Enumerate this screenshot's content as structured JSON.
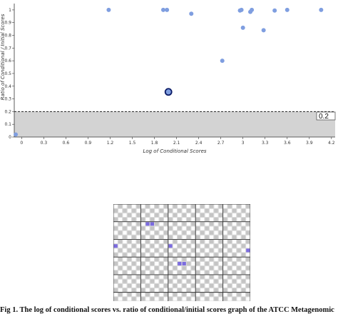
{
  "chart_data": {
    "type": "scatter",
    "title": "",
    "xlabel": "Log of Conditional Scores",
    "ylabel": "Ratio of Conditional / Initial Scores",
    "xlim": [
      -0.1,
      4.25
    ],
    "ylim": [
      0,
      1.05
    ],
    "x_ticks": [
      "0",
      "0.3",
      "0.6",
      "0.9",
      "1.2",
      "1.5",
      "1.8",
      "2.1",
      "2.4",
      "2.7",
      "3",
      "3.3",
      "3.6",
      "3.9",
      "4.2"
    ],
    "y_ticks": [
      "0",
      "0.1",
      "0.2",
      "0.3",
      "0.4",
      "0.5",
      "0.6",
      "0.7",
      "0.8",
      "0.9",
      "1"
    ],
    "points": [
      {
        "x": -0.08,
        "y": 0.02
      },
      {
        "x": 1.18,
        "y": 1.0
      },
      {
        "x": 1.92,
        "y": 1.0
      },
      {
        "x": 1.97,
        "y": 1.0
      },
      {
        "x": 2.3,
        "y": 0.97
      },
      {
        "x": 2.96,
        "y": 0.995
      },
      {
        "x": 2.98,
        "y": 1.0
      },
      {
        "x": 3.0,
        "y": 0.86
      },
      {
        "x": 3.1,
        "y": 0.985
      },
      {
        "x": 3.12,
        "y": 1.0
      },
      {
        "x": 3.28,
        "y": 0.84
      },
      {
        "x": 3.43,
        "y": 0.995
      },
      {
        "x": 3.6,
        "y": 1.0
      },
      {
        "x": 4.06,
        "y": 1.0
      },
      {
        "x": 2.72,
        "y": 0.6
      }
    ],
    "highlighted_point": {
      "x": 1.99,
      "y": 0.355
    },
    "threshold": 0.2,
    "threshold_label": "0.2",
    "point_color": "#7f9ee0",
    "highlight_color": "#2255cc",
    "shade_color": "#d3d3d3"
  },
  "grid_heatmap": {
    "rows": 22,
    "cols": 30,
    "cell_color": "#ffffff",
    "background_color": "#d9d9d9",
    "highlight_color": "#7b6be0",
    "major_line_color": "#333333",
    "highlighted_cells": [
      [
        4,
        7
      ],
      [
        4,
        8
      ],
      [
        9,
        0
      ],
      [
        9,
        12
      ],
      [
        10,
        29
      ],
      [
        13,
        14
      ],
      [
        13,
        15
      ]
    ]
  },
  "caption": "Fig 1. The log of conditional scores vs. ratio of conditional/initial scores graph of the ATCC Metagenomic"
}
